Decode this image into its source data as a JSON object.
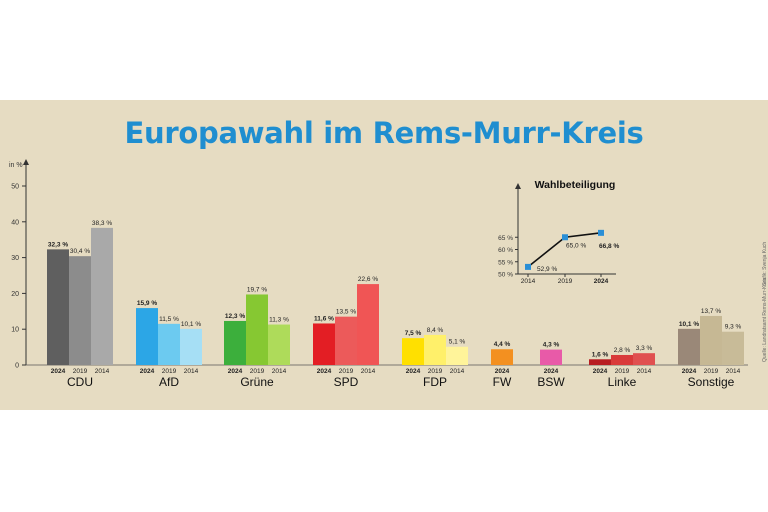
{
  "title": "Europawahl im Rems-Murr-Kreis",
  "unit_label": "in %",
  "side_notes": [
    "Grafik: Svenja Kuch",
    "Quelle: Landratsamt Rems-Murr-Kreis"
  ],
  "colors": {
    "background": "#e6dcc2",
    "title": "#1f8ed0"
  },
  "chart_data": [
    {
      "type": "bar",
      "title": "",
      "ylabel": "in %",
      "ylim": [
        0,
        50
      ],
      "yticks": [
        0,
        10,
        20,
        30,
        40,
        50
      ],
      "parties": [
        {
          "name": "CDU",
          "bars": [
            {
              "year": "2024",
              "value": 32.3,
              "label": "32,3 %",
              "color": "#5f5f5f"
            },
            {
              "year": "2019",
              "value": 30.4,
              "label": "30,4 %",
              "color": "#8c8c8c"
            },
            {
              "year": "2014",
              "value": 38.3,
              "label": "38,3 %",
              "color": "#a9a9a9"
            }
          ]
        },
        {
          "name": "AfD",
          "bars": [
            {
              "year": "2024",
              "value": 15.9,
              "label": "15,9 %",
              "color": "#2ca6e6"
            },
            {
              "year": "2019",
              "value": 11.5,
              "label": "11,5 %",
              "color": "#6ccaf0"
            },
            {
              "year": "2014",
              "value": 10.1,
              "label": "10,1 %",
              "color": "#a6dff5"
            }
          ]
        },
        {
          "name": "Grüne",
          "bars": [
            {
              "year": "2024",
              "value": 12.3,
              "label": "12,3 %",
              "color": "#3caf3c"
            },
            {
              "year": "2019",
              "value": 19.7,
              "label": "19,7 %",
              "color": "#86c832"
            },
            {
              "year": "2014",
              "value": 11.3,
              "label": "11,3 %",
              "color": "#aedb5a"
            }
          ]
        },
        {
          "name": "SPD",
          "bars": [
            {
              "year": "2024",
              "value": 11.6,
              "label": "11,6 %",
              "color": "#e31e24"
            },
            {
              "year": "2019",
              "value": 13.5,
              "label": "13,5 %",
              "color": "#ec5a5a"
            },
            {
              "year": "2014",
              "value": 22.6,
              "label": "22,6 %",
              "color": "#f05555"
            }
          ]
        },
        {
          "name": "FDP",
          "bars": [
            {
              "year": "2024",
              "value": 7.5,
              "label": "7,5 %",
              "color": "#ffe000"
            },
            {
              "year": "2019",
              "value": 8.4,
              "label": "8,4 %",
              "color": "#fff06a"
            },
            {
              "year": "2014",
              "value": 5.1,
              "label": "5,1 %",
              "color": "#fff49a"
            }
          ]
        },
        {
          "name": "FW",
          "bars": [
            {
              "year": "2024",
              "value": 4.4,
              "label": "4,4 %",
              "color": "#f39020"
            }
          ]
        },
        {
          "name": "BSW",
          "bars": [
            {
              "year": "2024",
              "value": 4.3,
              "label": "4,3 %",
              "color": "#e85aa8"
            }
          ]
        },
        {
          "name": "Linke",
          "bars": [
            {
              "year": "2024",
              "value": 1.6,
              "label": "1,6 %",
              "color": "#b81e23"
            },
            {
              "year": "2019",
              "value": 2.8,
              "label": "2,8 %",
              "color": "#d93a3a"
            },
            {
              "year": "2014",
              "value": 3.3,
              "label": "3,3 %",
              "color": "#e05050"
            }
          ]
        },
        {
          "name": "Sonstige",
          "bars": [
            {
              "year": "2024",
              "value": 10.1,
              "label": "10,1 %",
              "color": "#9a8878"
            },
            {
              "year": "2019",
              "value": 13.7,
              "label": "13,7 %",
              "color": "#c6b894"
            },
            {
              "year": "2014",
              "value": 9.3,
              "label": "9,3 %",
              "color": "#c8bb98"
            }
          ]
        }
      ]
    },
    {
      "type": "line",
      "title": "Wahlbeteiligung",
      "x": [
        "2014",
        "2019",
        "2024"
      ],
      "values": [
        52.9,
        65.0,
        66.8
      ],
      "labels": [
        "52,9 %",
        "65,0 %",
        "66,8 %"
      ],
      "ylim": [
        50,
        70
      ],
      "yticks": [
        50,
        55,
        60,
        65
      ],
      "ytick_labels": [
        "50 %",
        "55 %",
        "60 %",
        "65 %"
      ]
    }
  ]
}
